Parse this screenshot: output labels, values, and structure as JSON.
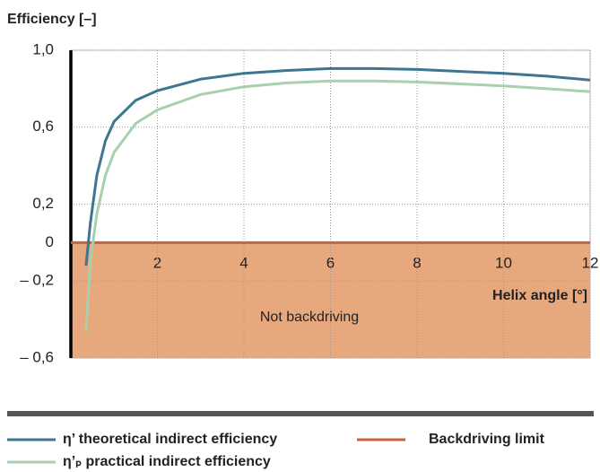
{
  "chart_data": {
    "type": "line",
    "y_label": "Efficiency [–]",
    "x_label": "Helix angle [°]",
    "annotation": "Not backdriving",
    "xlim": [
      0,
      12
    ],
    "xticks": [
      2,
      4,
      6,
      8,
      10,
      12
    ],
    "ylim": [
      -0.6,
      1.0
    ],
    "yticks": [
      {
        "value": 1.0,
        "label": "1,0"
      },
      {
        "value": 0.6,
        "label": "0,6"
      },
      {
        "value": 0.2,
        "label": "0,2"
      },
      0,
      {
        "value": -0.2,
        "label": "– 0,2"
      },
      {
        "value": -0.6,
        "label": "– 0,6"
      }
    ],
    "grid": true,
    "series": [
      {
        "name": "η’ theoretical indirect efficiency",
        "color": "#3e7590",
        "x": [
          0.35,
          0.45,
          0.6,
          0.8,
          1,
          1.5,
          2,
          3,
          4,
          5,
          6,
          7,
          8,
          9,
          10,
          11,
          12
        ],
        "values": [
          -0.12,
          0.1,
          0.35,
          0.53,
          0.63,
          0.74,
          0.79,
          0.85,
          0.88,
          0.895,
          0.905,
          0.905,
          0.9,
          0.89,
          0.88,
          0.865,
          0.845
        ]
      },
      {
        "name": "η’ₚ practical indirect efficiency",
        "color": "#a8cfae",
        "x": [
          0.35,
          0.45,
          0.6,
          0.8,
          1,
          1.5,
          2,
          3,
          4,
          5,
          6,
          7,
          8,
          9,
          10,
          11,
          12
        ],
        "values": [
          -0.46,
          -0.1,
          0.15,
          0.35,
          0.47,
          0.62,
          0.69,
          0.77,
          0.81,
          0.83,
          0.84,
          0.84,
          0.835,
          0.825,
          0.815,
          0.8,
          0.785
        ]
      },
      {
        "name": "Backdriving limit",
        "color": "#c8643c",
        "x": [
          0,
          12
        ],
        "values": [
          0,
          0
        ]
      }
    ]
  }
}
